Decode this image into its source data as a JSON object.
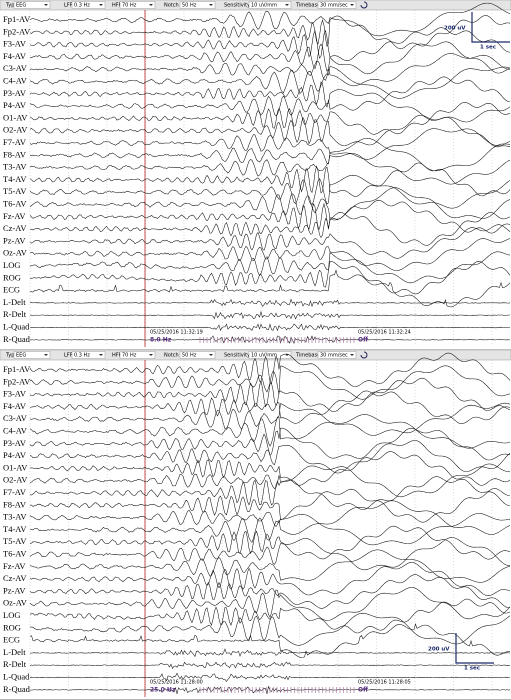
{
  "panels": [
    {
      "toolbar": [
        {
          "label": "Type",
          "value": "EEG"
        },
        {
          "label": "LFF",
          "value": "0.3 Hz"
        },
        {
          "label": "HFF",
          "value": "70 Hz"
        },
        {
          "label": "Notch",
          "value": "50 Hz"
        },
        {
          "label": "Sensitivity",
          "value": "10 uV/mm"
        },
        {
          "label": "Timebase",
          "value": "30 mm/sec"
        }
      ],
      "channels": [
        "Fp1-AV",
        "Fp2-AV",
        "F3-AV",
        "F4-AV",
        "C3-AV",
        "C4-AV",
        "P3-AV",
        "P4-AV",
        "O1-AV",
        "O2-AV",
        "F7-AV",
        "F8-AV",
        "T3-AV",
        "T4-AV",
        "T5-AV",
        "T6-AV",
        "Fz-AV",
        "Cz-AV",
        "Pz-AV",
        "Oz-AV",
        "LOG",
        "ROG",
        "ECG",
        "L-Delt",
        "R-Delt",
        "L-Quad",
        "R-Quad"
      ],
      "scale": {
        "amplitude": "200 uV",
        "time": "1 sec"
      },
      "markers": [
        {
          "time": "05/25/2016 11:32:19",
          "rate": "8.0 Hz"
        },
        {
          "time": "05/25/2016 11:32:24",
          "rate": "Off"
        }
      ]
    },
    {
      "toolbar": [
        {
          "label": "Type",
          "value": "EEG"
        },
        {
          "label": "LFF",
          "value": "0.3 Hz"
        },
        {
          "label": "HFF",
          "value": "70 Hz"
        },
        {
          "label": "Notch",
          "value": "50 Hz"
        },
        {
          "label": "Sensitivity",
          "value": "10 uV/mm"
        },
        {
          "label": "Timebase",
          "value": "30 mm/sec"
        }
      ],
      "channels": [
        "Fp1-AV",
        "Fp2-AV",
        "F3-AV",
        "F4-AV",
        "C3-AV",
        "C4-AV",
        "P3-AV",
        "P4-AV",
        "O1-AV",
        "O2-AV",
        "F7-AV",
        "F8-AV",
        "T3-AV",
        "T4-AV",
        "T5-AV",
        "T6-AV",
        "Fz-AV",
        "Cz-AV",
        "Pz-AV",
        "Oz-AV",
        "LOG",
        "ROG",
        "ECG",
        "L-Delt",
        "R-Delt",
        "L-Quad",
        "R-Quad"
      ],
      "scale": {
        "amplitude": "200 uV",
        "time": "1 sec"
      },
      "markers": [
        {
          "time": "05/25/2016 11:28:00",
          "rate": "25.0 Hz"
        },
        {
          "time": "05/25/2016 11:28:05",
          "rate": "Off"
        }
      ]
    }
  ]
}
